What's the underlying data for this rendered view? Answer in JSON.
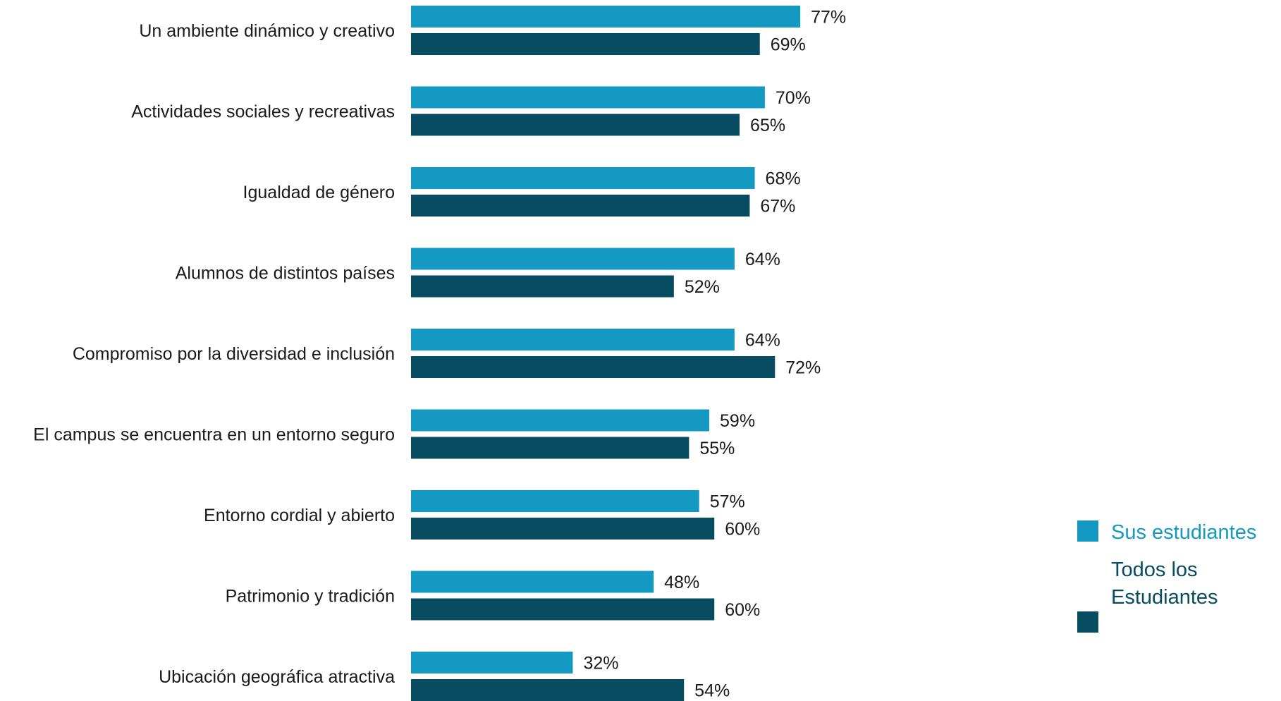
{
  "chart_data": {
    "type": "bar",
    "orientation": "horizontal",
    "categories": [
      "Un ambiente dinámico y creativo",
      "Actividades sociales y recreativas",
      "Igualdad de género",
      "Alumnos de distintos países",
      "Compromiso por la diversidad e inclusión",
      "El campus se encuentra en un entorno seguro",
      "Entorno cordial y abierto",
      "Patrimonio y tradición",
      "Ubicación geográfica atractiva"
    ],
    "series": [
      {
        "name": "Sus estudiantes",
        "color": "#1499c3",
        "values": [
          77,
          70,
          68,
          64,
          64,
          59,
          57,
          48,
          32
        ]
      },
      {
        "name": "Todos los Estudiantes",
        "color": "#084c61",
        "values": [
          69,
          65,
          67,
          52,
          72,
          55,
          60,
          60,
          54
        ]
      }
    ],
    "value_suffix": "%",
    "xlim": [
      0,
      100
    ],
    "grid": false,
    "legend_position": "bottom-right"
  }
}
